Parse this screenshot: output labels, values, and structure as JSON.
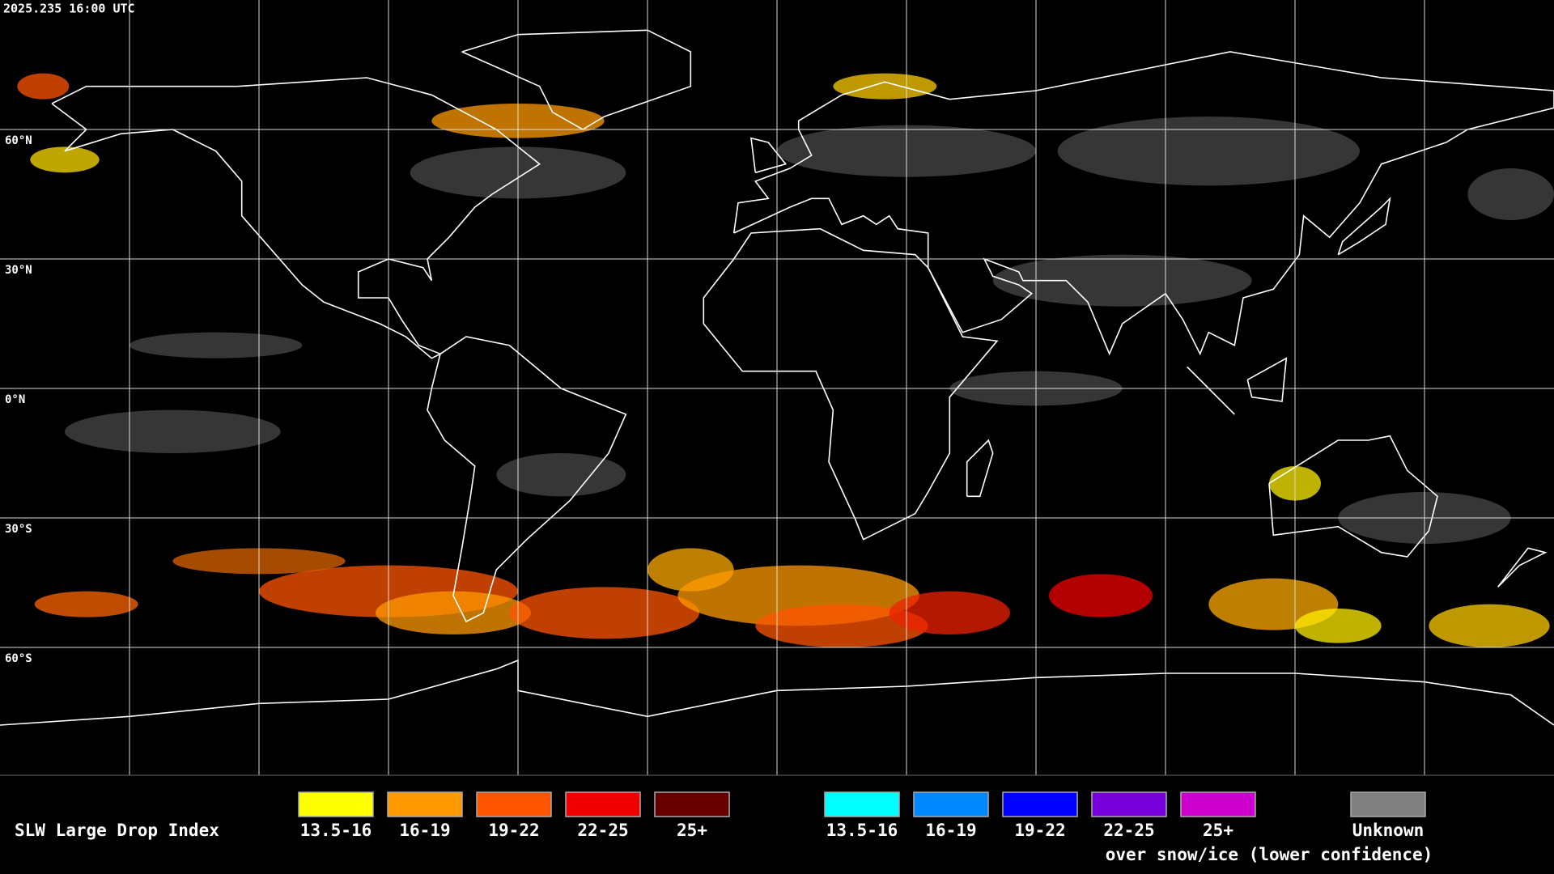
{
  "header": {
    "timestamp": "2025.235 16:00 UTC"
  },
  "map": {
    "lat_labels": [
      "60°N",
      "30°N",
      "0°N",
      "30°S",
      "60°S"
    ]
  },
  "legend": {
    "title": "SLW Large Drop Index",
    "items": [
      {
        "label": "13.5-16",
        "color": "#ffff00"
      },
      {
        "label": "16-19",
        "color": "#ff9900"
      },
      {
        "label": "19-22",
        "color": "#ff5500"
      },
      {
        "label": "22-25",
        "color": "#ee0000"
      },
      {
        "label": "25+",
        "color": "#660000"
      }
    ],
    "snow_items": [
      {
        "label": "13.5-16",
        "color": "#00ffff"
      },
      {
        "label": "16-19",
        "color": "#0088ff"
      },
      {
        "label": "19-22",
        "color": "#0000ff"
      },
      {
        "label": "22-25",
        "color": "#7700dd"
      },
      {
        "label": "25+",
        "color": "#cc00cc"
      }
    ],
    "snow_note": "over snow/ice (lower confidence)",
    "unknown": {
      "label": "Unknown",
      "color": "#808080"
    }
  }
}
